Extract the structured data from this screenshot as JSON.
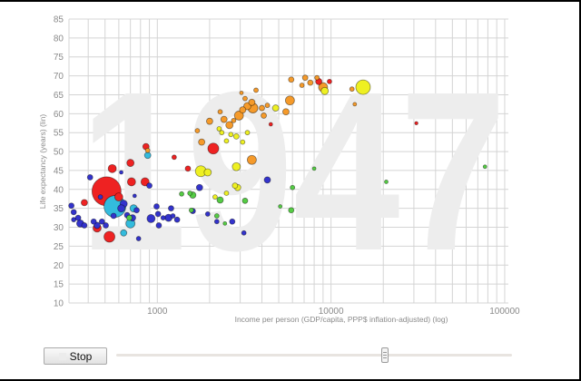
{
  "controls": {
    "play_button_label": "Stop",
    "slider_position": 0.68
  },
  "chart_data": {
    "type": "scatter",
    "title": "",
    "watermark_year": "1947",
    "xlabel": "Income per person (GDP/capita, PPP$ inflation-adjusted) (log)",
    "ylabel": "Life expectancy (years) (lin)",
    "xscale": "log",
    "xlim": [
      310,
      105000
    ],
    "ylim": [
      10,
      85
    ],
    "x_ticks": [
      1000,
      10000,
      100000
    ],
    "x_tick_labels": [
      "1000",
      "10000",
      "100000"
    ],
    "y_ticks": [
      10,
      15,
      20,
      25,
      30,
      35,
      40,
      45,
      50,
      55,
      60,
      65,
      70,
      75,
      80,
      85
    ],
    "grid": true,
    "legend": "none",
    "series_colors": {
      "south_asia_red": "#ee2222",
      "east_asia_blue": "#3333cc",
      "china_cyan": "#33bbdd",
      "americas_yellow": "#eef022",
      "europe_orange": "#f59a2a",
      "africa_green": "#55cc44"
    },
    "points": [
      {
        "x": 510,
        "y": 39.5,
        "r": 16,
        "color": "#ee2222"
      },
      {
        "x": 570,
        "y": 35.5,
        "r": 12,
        "color": "#33bbdd"
      },
      {
        "x": 530,
        "y": 27.5,
        "r": 6,
        "color": "#ee2222"
      },
      {
        "x": 550,
        "y": 45.5,
        "r": 4.5,
        "color": "#ee2222"
      },
      {
        "x": 600,
        "y": 38.0,
        "r": 4.5,
        "color": "#ee2222"
      },
      {
        "x": 450,
        "y": 29.8,
        "r": 4.5,
        "color": "#ee2222"
      },
      {
        "x": 700,
        "y": 47.0,
        "r": 4,
        "color": "#ee2222"
      },
      {
        "x": 710,
        "y": 42.0,
        "r": 4.5,
        "color": "#ee2222"
      },
      {
        "x": 860,
        "y": 51.3,
        "r": 3.5,
        "color": "#ee2222"
      },
      {
        "x": 850,
        "y": 42.0,
        "r": 4.5,
        "color": "#ee2222"
      },
      {
        "x": 380,
        "y": 36.5,
        "r": 3.5,
        "color": "#ee2222"
      },
      {
        "x": 2100,
        "y": 50.8,
        "r": 6,
        "color": "#ee2222"
      },
      {
        "x": 1500,
        "y": 45.5,
        "r": 3,
        "color": "#ee2222"
      },
      {
        "x": 1250,
        "y": 48.5,
        "r": 2.5,
        "color": "#ee2222"
      },
      {
        "x": 640,
        "y": 28.5,
        "r": 3.5,
        "color": "#33bbdd"
      },
      {
        "x": 700,
        "y": 31.0,
        "r": 5,
        "color": "#33bbdd"
      },
      {
        "x": 880,
        "y": 49.0,
        "r": 3.5,
        "color": "#33bbdd"
      },
      {
        "x": 730,
        "y": 35.0,
        "r": 4,
        "color": "#33bbdd"
      },
      {
        "x": 880,
        "y": 50.3,
        "r": 2.5,
        "color": "#f59a2a"
      },
      {
        "x": 320,
        "y": 35.7,
        "r": 3,
        "color": "#3333cc"
      },
      {
        "x": 330,
        "y": 34.0,
        "r": 3,
        "color": "#3333cc"
      },
      {
        "x": 330,
        "y": 32.0,
        "r": 2.5,
        "color": "#3333cc"
      },
      {
        "x": 350,
        "y": 32.5,
        "r": 3,
        "color": "#3333cc"
      },
      {
        "x": 360,
        "y": 31.0,
        "r": 4,
        "color": "#3333cc"
      },
      {
        "x": 380,
        "y": 30.5,
        "r": 3,
        "color": "#3333cc"
      },
      {
        "x": 410,
        "y": 43.2,
        "r": 3,
        "color": "#3333cc"
      },
      {
        "x": 430,
        "y": 31.5,
        "r": 3,
        "color": "#3333cc"
      },
      {
        "x": 450,
        "y": 30.5,
        "r": 3.5,
        "color": "#3333cc"
      },
      {
        "x": 480,
        "y": 31.5,
        "r": 3,
        "color": "#3333cc"
      },
      {
        "x": 505,
        "y": 30.5,
        "r": 3,
        "color": "#3333cc"
      },
      {
        "x": 470,
        "y": 38.0,
        "r": 2.5,
        "color": "#3333cc"
      },
      {
        "x": 560,
        "y": 33.0,
        "r": 3,
        "color": "#3333cc"
      },
      {
        "x": 640,
        "y": 36.2,
        "r": 4,
        "color": "#3333cc"
      },
      {
        "x": 620,
        "y": 35.0,
        "r": 4,
        "color": "#3333cc"
      },
      {
        "x": 670,
        "y": 33.2,
        "r": 3,
        "color": "#3333cc"
      },
      {
        "x": 720,
        "y": 32.5,
        "r": 3.5,
        "color": "#3333cc"
      },
      {
        "x": 760,
        "y": 34.5,
        "r": 3,
        "color": "#3333cc"
      },
      {
        "x": 780,
        "y": 27.0,
        "r": 2.5,
        "color": "#3333cc"
      },
      {
        "x": 740,
        "y": 38.3,
        "r": 2,
        "color": "#3333cc"
      },
      {
        "x": 900,
        "y": 41.0,
        "r": 3,
        "color": "#3333cc"
      },
      {
        "x": 620,
        "y": 44.5,
        "r": 2,
        "color": "#3333cc"
      },
      {
        "x": 920,
        "y": 32.3,
        "r": 4.5,
        "color": "#3333cc"
      },
      {
        "x": 990,
        "y": 35.5,
        "r": 3,
        "color": "#3333cc"
      },
      {
        "x": 1010,
        "y": 33.5,
        "r": 3,
        "color": "#3333cc"
      },
      {
        "x": 1020,
        "y": 30.5,
        "r": 3,
        "color": "#3333cc"
      },
      {
        "x": 1080,
        "y": 32.5,
        "r": 2.5,
        "color": "#3333cc"
      },
      {
        "x": 1160,
        "y": 32.5,
        "r": 4,
        "color": "#3333cc"
      },
      {
        "x": 1200,
        "y": 35.0,
        "r": 3,
        "color": "#3333cc"
      },
      {
        "x": 1230,
        "y": 33.0,
        "r": 2.5,
        "color": "#3333cc"
      },
      {
        "x": 1300,
        "y": 32.0,
        "r": 3,
        "color": "#3333cc"
      },
      {
        "x": 1600,
        "y": 34.3,
        "r": 3,
        "color": "#3333cc"
      },
      {
        "x": 1950,
        "y": 33.5,
        "r": 2.5,
        "color": "#3333cc"
      },
      {
        "x": 2200,
        "y": 31.5,
        "r": 2.5,
        "color": "#3333cc"
      },
      {
        "x": 3150,
        "y": 28.5,
        "r": 2.5,
        "color": "#3333cc"
      },
      {
        "x": 4300,
        "y": 42.5,
        "r": 3.5,
        "color": "#3333cc"
      },
      {
        "x": 2700,
        "y": 31.5,
        "r": 3,
        "color": "#3333cc"
      },
      {
        "x": 1750,
        "y": 40.5,
        "r": 3.5,
        "color": "#3333cc"
      },
      {
        "x": 690,
        "y": 32.5,
        "r": 3,
        "color": "#55cc44"
      },
      {
        "x": 1380,
        "y": 38.8,
        "r": 2.5,
        "color": "#55cc44"
      },
      {
        "x": 1540,
        "y": 39.0,
        "r": 2.5,
        "color": "#55cc44"
      },
      {
        "x": 1600,
        "y": 38.5,
        "r": 3.5,
        "color": "#55cc44"
      },
      {
        "x": 2300,
        "y": 37.2,
        "r": 3.5,
        "color": "#55cc44"
      },
      {
        "x": 1570,
        "y": 34.5,
        "r": 2.5,
        "color": "#55cc44"
      },
      {
        "x": 3200,
        "y": 37.0,
        "r": 3,
        "color": "#55cc44"
      },
      {
        "x": 2200,
        "y": 33.0,
        "r": 2.5,
        "color": "#55cc44"
      },
      {
        "x": 2450,
        "y": 31.0,
        "r": 2,
        "color": "#55cc44"
      },
      {
        "x": 5100,
        "y": 35.5,
        "r": 2,
        "color": "#55cc44"
      },
      {
        "x": 6000,
        "y": 40.5,
        "r": 2.5,
        "color": "#55cc44"
      },
      {
        "x": 5900,
        "y": 34.5,
        "r": 3,
        "color": "#55cc44"
      },
      {
        "x": 8000,
        "y": 45.5,
        "r": 2,
        "color": "#55cc44"
      },
      {
        "x": 20800,
        "y": 42.0,
        "r": 2,
        "color": "#55cc44"
      },
      {
        "x": 77000,
        "y": 46.0,
        "r": 2,
        "color": "#55cc44"
      },
      {
        "x": 1780,
        "y": 44.8,
        "r": 6,
        "color": "#eef022"
      },
      {
        "x": 1950,
        "y": 44.5,
        "r": 4,
        "color": "#eef022"
      },
      {
        "x": 2850,
        "y": 46.0,
        "r": 4.5,
        "color": "#eef022"
      },
      {
        "x": 2800,
        "y": 41.0,
        "r": 3,
        "color": "#eef022"
      },
      {
        "x": 2900,
        "y": 40.5,
        "r": 3.5,
        "color": "#eef022"
      },
      {
        "x": 2500,
        "y": 39.0,
        "r": 2.5,
        "color": "#eef022"
      },
      {
        "x": 2150,
        "y": 38.0,
        "r": 2.5,
        "color": "#eef022"
      },
      {
        "x": 2270,
        "y": 56.0,
        "r": 2.5,
        "color": "#eef022"
      },
      {
        "x": 2500,
        "y": 52.8,
        "r": 2.5,
        "color": "#eef022"
      },
      {
        "x": 2650,
        "y": 54.5,
        "r": 2.5,
        "color": "#eef022"
      },
      {
        "x": 2850,
        "y": 54.0,
        "r": 3,
        "color": "#eef022"
      },
      {
        "x": 3100,
        "y": 52.5,
        "r": 2.5,
        "color": "#eef022"
      },
      {
        "x": 3300,
        "y": 55.0,
        "r": 2.5,
        "color": "#eef022"
      },
      {
        "x": 2350,
        "y": 55.0,
        "r": 2.5,
        "color": "#eef022"
      },
      {
        "x": 4800,
        "y": 61.5,
        "r": 3.5,
        "color": "#eef022"
      },
      {
        "x": 9200,
        "y": 66.0,
        "r": 4,
        "color": "#eef022"
      },
      {
        "x": 15300,
        "y": 67.0,
        "r": 8,
        "color": "#eef022"
      },
      {
        "x": 3500,
        "y": 47.8,
        "r": 5,
        "color": "#f59a2a"
      },
      {
        "x": 1800,
        "y": 52.5,
        "r": 3.5,
        "color": "#f59a2a"
      },
      {
        "x": 2000,
        "y": 58.0,
        "r": 3.5,
        "color": "#f59a2a"
      },
      {
        "x": 2300,
        "y": 60.5,
        "r": 2.5,
        "color": "#f59a2a"
      },
      {
        "x": 2420,
        "y": 58.5,
        "r": 3.5,
        "color": "#f59a2a"
      },
      {
        "x": 2600,
        "y": 57.0,
        "r": 4,
        "color": "#f59a2a"
      },
      {
        "x": 2750,
        "y": 58.2,
        "r": 2.5,
        "color": "#f59a2a"
      },
      {
        "x": 2950,
        "y": 59.5,
        "r": 5,
        "color": "#f59a2a"
      },
      {
        "x": 3100,
        "y": 61.0,
        "r": 3.5,
        "color": "#f59a2a"
      },
      {
        "x": 3300,
        "y": 62.0,
        "r": 4,
        "color": "#f59a2a"
      },
      {
        "x": 3550,
        "y": 61.5,
        "r": 5.5,
        "color": "#f59a2a"
      },
      {
        "x": 3500,
        "y": 63.0,
        "r": 3.5,
        "color": "#f59a2a"
      },
      {
        "x": 4000,
        "y": 61.5,
        "r": 3,
        "color": "#f59a2a"
      },
      {
        "x": 4300,
        "y": 62.2,
        "r": 2.5,
        "color": "#f59a2a"
      },
      {
        "x": 4100,
        "y": 59.5,
        "r": 3,
        "color": "#f59a2a"
      },
      {
        "x": 3200,
        "y": 64.0,
        "r": 2.5,
        "color": "#f59a2a"
      },
      {
        "x": 3700,
        "y": 66.2,
        "r": 2.5,
        "color": "#f59a2a"
      },
      {
        "x": 3050,
        "y": 65.5,
        "r": 2,
        "color": "#f59a2a"
      },
      {
        "x": 1700,
        "y": 55.5,
        "r": 2.5,
        "color": "#f59a2a"
      },
      {
        "x": 5800,
        "y": 63.5,
        "r": 5,
        "color": "#f59a2a"
      },
      {
        "x": 5500,
        "y": 60.5,
        "r": 3.5,
        "color": "#f59a2a"
      },
      {
        "x": 5900,
        "y": 69.0,
        "r": 3,
        "color": "#f59a2a"
      },
      {
        "x": 7100,
        "y": 69.5,
        "r": 3,
        "color": "#f59a2a"
      },
      {
        "x": 7600,
        "y": 68.2,
        "r": 3,
        "color": "#f59a2a"
      },
      {
        "x": 6800,
        "y": 67.5,
        "r": 2.5,
        "color": "#f59a2a"
      },
      {
        "x": 9000,
        "y": 67.0,
        "r": 5,
        "color": "#f59a2a"
      },
      {
        "x": 13200,
        "y": 66.5,
        "r": 2.5,
        "color": "#f59a2a"
      },
      {
        "x": 13700,
        "y": 62.5,
        "r": 2,
        "color": "#f59a2a"
      },
      {
        "x": 8300,
        "y": 69.5,
        "r": 2.5,
        "color": "#f59a2a"
      },
      {
        "x": 8500,
        "y": 68.5,
        "r": 3.5,
        "color": "#ee2222"
      },
      {
        "x": 9800,
        "y": 68.5,
        "r": 2.5,
        "color": "#ee2222"
      },
      {
        "x": 4500,
        "y": 57.2,
        "r": 2,
        "color": "#ee2222"
      },
      {
        "x": 31000,
        "y": 57.5,
        "r": 1.8,
        "color": "#ee2222"
      }
    ]
  }
}
